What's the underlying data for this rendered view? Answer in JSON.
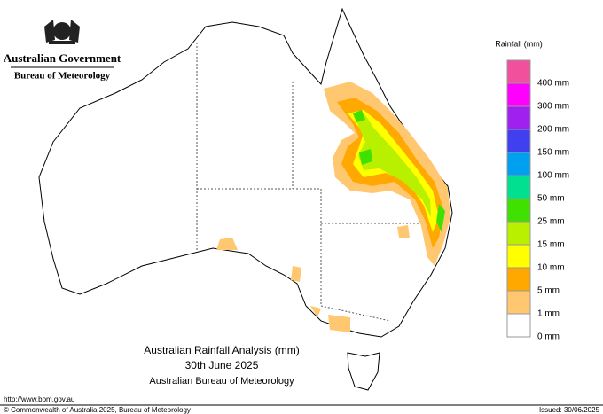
{
  "header": {
    "government": "Australian Government",
    "bureau": "Bureau of Meteorology"
  },
  "legend": {
    "title": "Rainfall (mm)",
    "items": [
      {
        "label": "400 mm",
        "color": "#f0509c"
      },
      {
        "label": "300 mm",
        "color": "#ff00ff"
      },
      {
        "label": "200 mm",
        "color": "#a020f0"
      },
      {
        "label": "150 mm",
        "color": "#4040f0"
      },
      {
        "label": "100 mm",
        "color": "#00a0f0"
      },
      {
        "label": "50 mm",
        "color": "#00e090"
      },
      {
        "label": "25 mm",
        "color": "#40e000"
      },
      {
        "label": "15 mm",
        "color": "#b8f000"
      },
      {
        "label": "10 mm",
        "color": "#ffff00"
      },
      {
        "label": "5 mm",
        "color": "#ffa800"
      },
      {
        "label": "1 mm",
        "color": "#ffc870"
      },
      {
        "label": "0 mm",
        "color": "#ffffff"
      }
    ]
  },
  "map_title": {
    "line1": "Australian Rainfall Analysis (mm)",
    "line2": "30th June 2025",
    "line3": "Australian Bureau of Meteorology"
  },
  "footer": {
    "url": "http://www.bom.gov.au",
    "copyright": "© Commonwealth of Australia 2025, Bureau of Meteorology",
    "issued": "Issued: 30/06/2025"
  }
}
